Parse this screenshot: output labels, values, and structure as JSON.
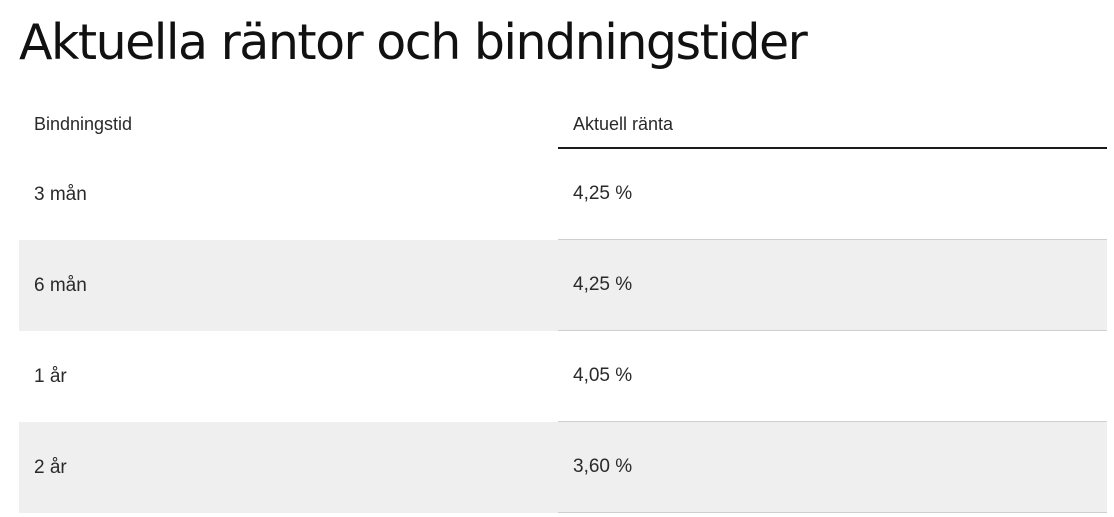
{
  "title": "Aktuella räntor och bindningstider",
  "table": {
    "headers": {
      "term": "Bindningstid",
      "rate": "Aktuell ränta"
    },
    "rows": [
      {
        "term": "3 mån",
        "rate": "4,25 %"
      },
      {
        "term": "6 mån",
        "rate": "4,25 %"
      },
      {
        "term": "1 år",
        "rate": "4,05 %"
      },
      {
        "term": "2 år",
        "rate": "3,60 %"
      }
    ]
  },
  "colors": {
    "stripe": "#efefef",
    "header_rule": "#1a1a1a",
    "row_rule": "#cfcfcf"
  }
}
